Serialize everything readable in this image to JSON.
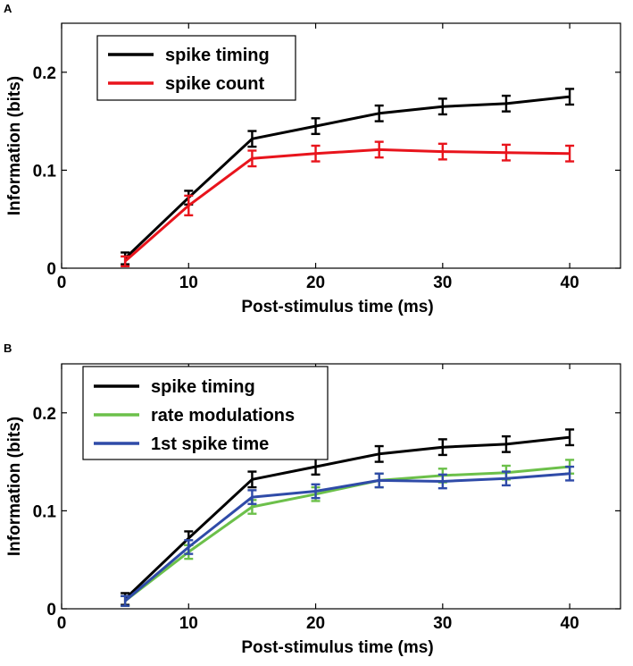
{
  "chart_data": [
    {
      "panel_label": "A",
      "type": "line",
      "xlabel": "Post-stimulus time (ms)",
      "ylabel": "Information (bits)",
      "xlim": [
        0,
        44
      ],
      "ylim": [
        0,
        0.25
      ],
      "xticks": [
        0,
        10,
        20,
        30,
        40
      ],
      "yticks": [
        0,
        0.1,
        0.2
      ],
      "ytick_labels": [
        "0",
        "0.1",
        "0.2"
      ],
      "legend_position": "top-left",
      "x": [
        5,
        10,
        15,
        20,
        25,
        30,
        35,
        40
      ],
      "series": [
        {
          "name": "spike timing",
          "color": "#000000",
          "values": [
            0.01,
            0.072,
            0.132,
            0.145,
            0.158,
            0.165,
            0.168,
            0.175
          ],
          "errors": [
            0.006,
            0.007,
            0.008,
            0.008,
            0.008,
            0.008,
            0.008,
            0.008
          ]
        },
        {
          "name": "spike count",
          "color": "#e8141c",
          "values": [
            0.007,
            0.064,
            0.112,
            0.117,
            0.121,
            0.119,
            0.118,
            0.117
          ],
          "errors": [
            0.005,
            0.01,
            0.008,
            0.008,
            0.008,
            0.008,
            0.008,
            0.008
          ]
        }
      ]
    },
    {
      "panel_label": "B",
      "type": "line",
      "xlabel": "Post-stimulus time (ms)",
      "ylabel": "Information (bits)",
      "xlim": [
        0,
        44
      ],
      "ylim": [
        0,
        0.25
      ],
      "xticks": [
        0,
        10,
        20,
        30,
        40
      ],
      "yticks": [
        0,
        0.1,
        0.2
      ],
      "ytick_labels": [
        "0",
        "0.1",
        "0.2"
      ],
      "legend_position": "top-left",
      "x": [
        5,
        10,
        15,
        20,
        25,
        30,
        35,
        40
      ],
      "series": [
        {
          "name": "spike timing",
          "color": "#000000",
          "values": [
            0.01,
            0.072,
            0.132,
            0.145,
            0.158,
            0.165,
            0.168,
            0.175
          ],
          "errors": [
            0.006,
            0.007,
            0.008,
            0.008,
            0.008,
            0.008,
            0.008,
            0.008
          ]
        },
        {
          "name": "rate modulations",
          "color": "#6cc04a",
          "values": [
            0.008,
            0.058,
            0.104,
            0.117,
            0.131,
            0.136,
            0.139,
            0.145
          ],
          "errors": [
            0.005,
            0.007,
            0.007,
            0.007,
            0.007,
            0.007,
            0.007,
            0.007
          ]
        },
        {
          "name": "1st spike time",
          "color": "#2f4ba8",
          "values": [
            0.008,
            0.063,
            0.114,
            0.12,
            0.131,
            0.13,
            0.133,
            0.138
          ],
          "errors": [
            0.005,
            0.007,
            0.007,
            0.007,
            0.007,
            0.007,
            0.007,
            0.007
          ]
        }
      ]
    }
  ]
}
